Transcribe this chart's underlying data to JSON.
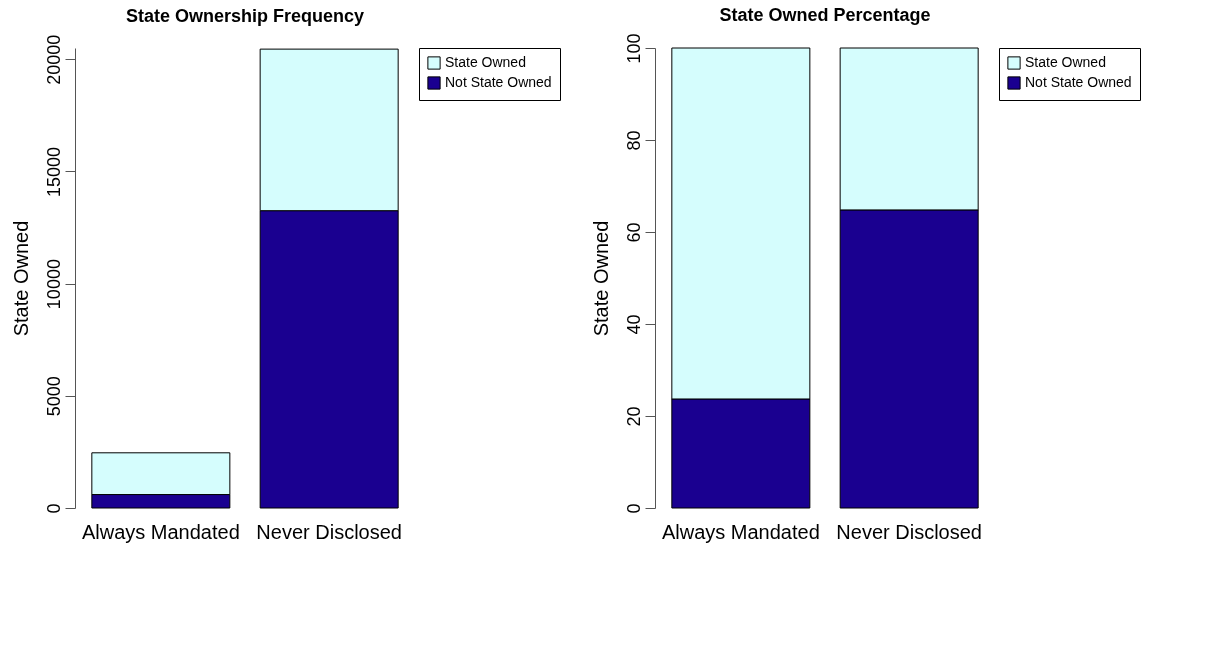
{
  "chart_data": [
    {
      "type": "bar",
      "title": "State Ownership Frequency",
      "ylabel": "State Owned",
      "categories": [
        "Always Mandated",
        "Never Disclosed"
      ],
      "stacked": true,
      "ylim": [
        0,
        20500
      ],
      "yticks": [
        0,
        5000,
        10000,
        15000,
        20000
      ],
      "grid": false,
      "legend": "top right",
      "series": [
        {
          "name": "Not State Owned",
          "color": "#1a0090",
          "values": [
            600,
            13250
          ]
        },
        {
          "name": "State Owned",
          "color": "#d5fdfd",
          "values": [
            1860,
            7200
          ]
        }
      ]
    },
    {
      "type": "bar",
      "title": "State Owned Percentage",
      "ylabel": "State Owned",
      "categories": [
        "Always Mandated",
        "Never Disclosed"
      ],
      "stacked": true,
      "ylim": [
        0,
        100
      ],
      "yticks": [
        0,
        20,
        40,
        60,
        80,
        100
      ],
      "grid": false,
      "legend": "top right",
      "series": [
        {
          "name": "Not State Owned",
          "color": "#1a0090",
          "values": [
            23.7,
            64.8
          ]
        },
        {
          "name": "State Owned",
          "color": "#d5fdfd",
          "values": [
            76.3,
            35.2
          ]
        }
      ]
    }
  ]
}
